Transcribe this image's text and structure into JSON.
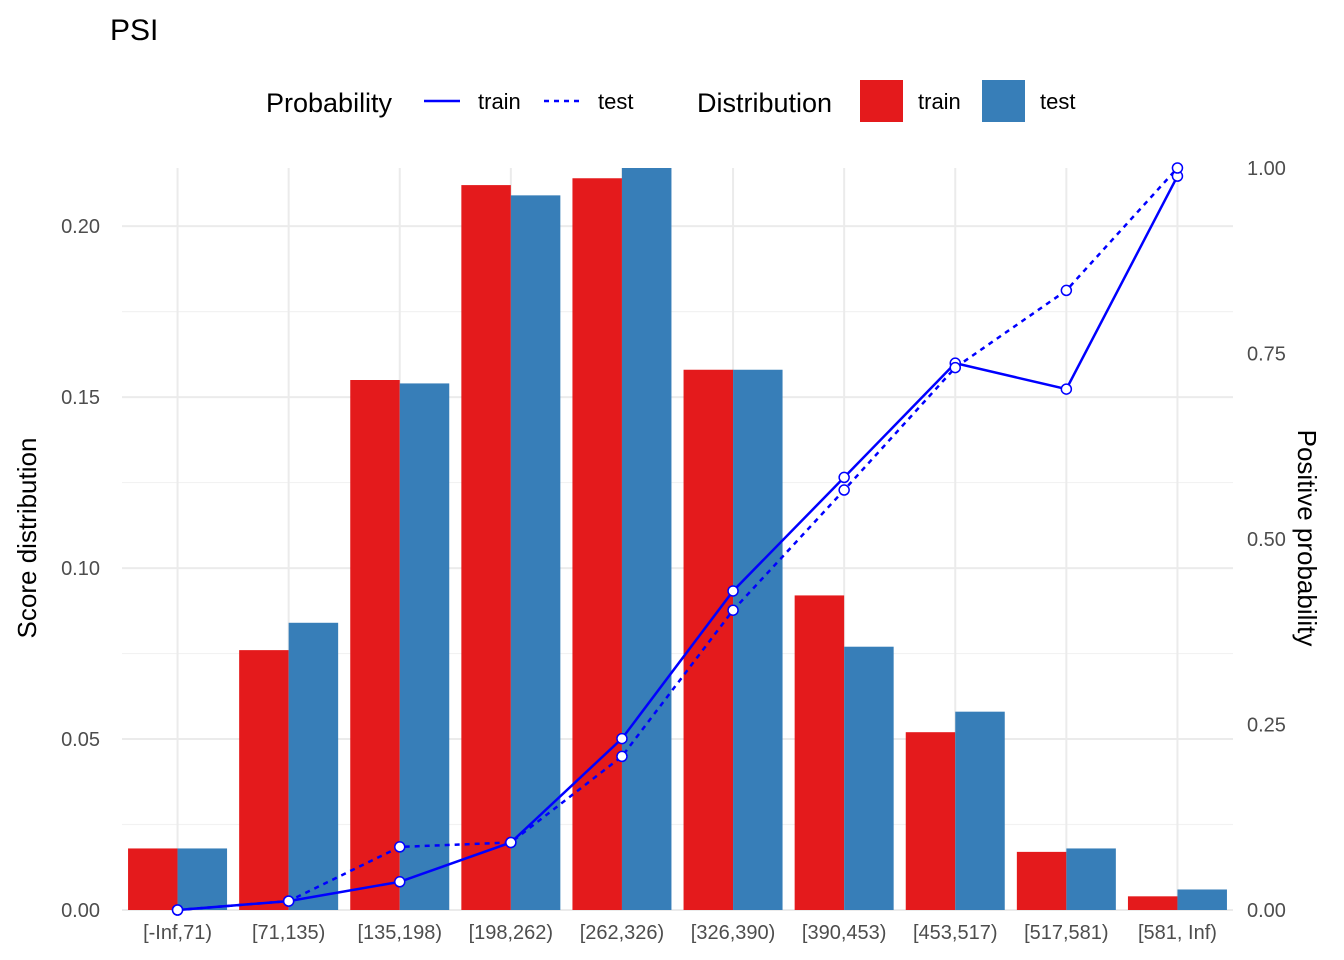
{
  "chart_data": {
    "type": "bar",
    "title": "PSI",
    "ylabel": "Score distribution",
    "y2label": "Positive probability",
    "xlabel": "",
    "categories": [
      "[-Inf,71)",
      "[71,135)",
      "[135,198)",
      "[198,262)",
      "[262,326)",
      "[326,390)",
      "[390,453)",
      "[453,517)",
      "[517,581)",
      "[581, Inf)"
    ],
    "ylim": [
      0,
      0.217
    ],
    "y2lim": [
      0,
      1.0
    ],
    "yticks": [
      "0.00",
      "0.05",
      "0.10",
      "0.15",
      "0.20"
    ],
    "y2ticks": [
      "0.00",
      "0.25",
      "0.50",
      "0.75",
      "1.00"
    ],
    "grid": true,
    "legend_position": "top",
    "bar_series": [
      {
        "name": "train",
        "color": "#E41A1C",
        "values": [
          0.018,
          0.076,
          0.155,
          0.212,
          0.214,
          0.158,
          0.092,
          0.052,
          0.017,
          0.004
        ]
      },
      {
        "name": "test",
        "color": "#377EB8",
        "values": [
          0.018,
          0.084,
          0.154,
          0.209,
          0.217,
          0.158,
          0.077,
          0.058,
          0.018,
          0.006
        ]
      }
    ],
    "line_series": [
      {
        "name": "train",
        "color": "#0000FF",
        "dash": "solid",
        "values": [
          0.0,
          0.012,
          0.038,
          0.091,
          0.231,
          0.43,
          0.583,
          0.737,
          0.702,
          0.989
        ]
      },
      {
        "name": "test",
        "color": "#0000FF",
        "dash": "dotted",
        "values": [
          0.0,
          0.012,
          0.085,
          0.091,
          0.207,
          0.404,
          0.566,
          0.731,
          0.835,
          1.0
        ]
      }
    ],
    "legend": {
      "probability_title": "Probability",
      "distribution_title": "Distribution",
      "probability_items": [
        "train",
        "test"
      ],
      "distribution_items": [
        "train",
        "test"
      ]
    }
  }
}
